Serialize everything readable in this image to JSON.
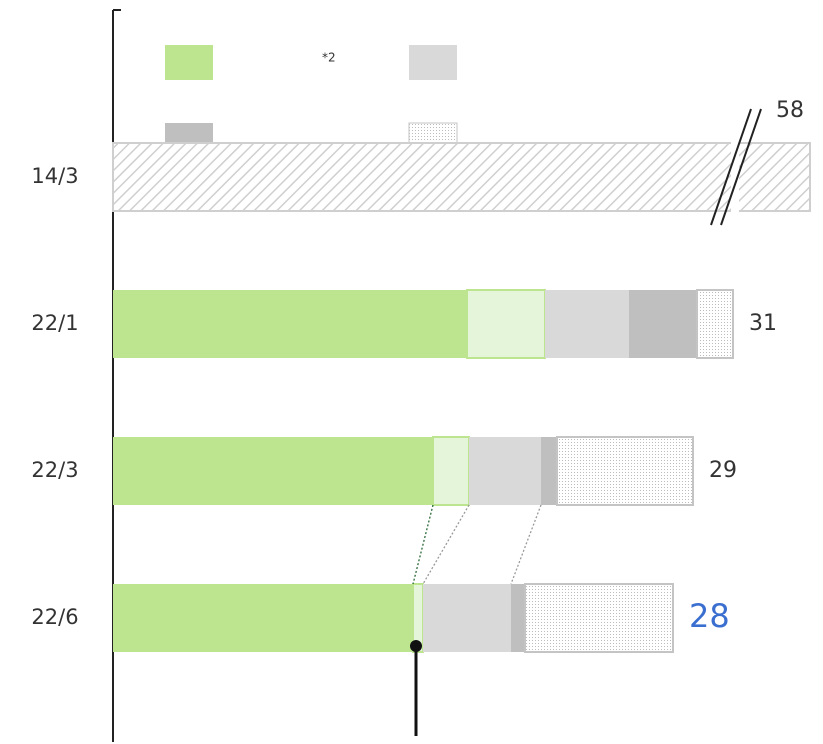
{
  "chart_data": {
    "type": "stacked-barh",
    "categories": [
      "14/3",
      "22/1",
      "22/3",
      "22/6"
    ],
    "series": [
      {
        "color": "#bde58f",
        "legend": true,
        "values": [
          null,
          17.7,
          16.0,
          15.0
        ]
      },
      {
        "color": "#e5f5da",
        "stroke": "#bde58f",
        "legend": false,
        "values": [
          null,
          3.9,
          1.8,
          0.5
        ]
      },
      {
        "color": "#d9d9d9",
        "legend": true,
        "values": [
          null,
          4.2,
          3.6,
          4.4
        ]
      },
      {
        "color": "#bfbfbf",
        "legend": true,
        "values": [
          null,
          3.4,
          0.8,
          0.7
        ]
      },
      {
        "color": "#c4c4c4",
        "pattern": "dots",
        "legend": true,
        "values": [
          null,
          1.8,
          6.8,
          7.4
        ]
      },
      {
        "color": "#cfcfcf",
        "pattern": "hatch",
        "legend": false,
        "values": [
          58,
          null,
          null,
          null
        ]
      }
    ],
    "legend_note": "*2",
    "totals": [
      58,
      31,
      29,
      28
    ],
    "total_colors": [
      "#333333",
      "#333333",
      "#333333",
      "#3a6fd0"
    ],
    "xlim": [
      0,
      35
    ],
    "axis_break": true
  }
}
